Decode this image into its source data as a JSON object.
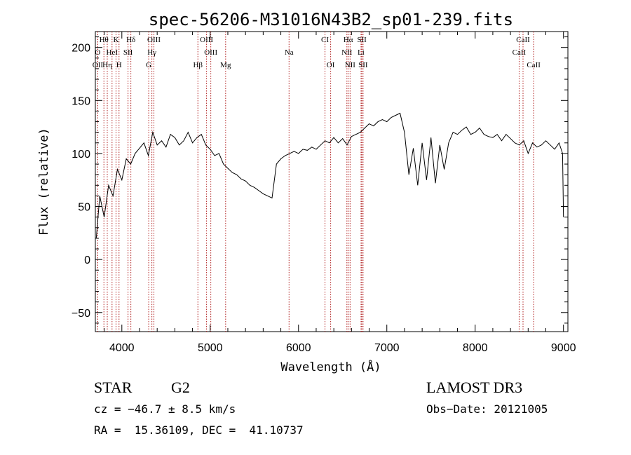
{
  "chart_data": {
    "type": "line",
    "title": "spec-56206-M31016N43B2_sp01-239.fits",
    "xlabel": "Wavelength (Å)",
    "ylabel": "Flux (relative)",
    "xlim": [
      3700,
      9050
    ],
    "ylim": [
      -68,
      215
    ],
    "x_ticks": [
      4000,
      5000,
      6000,
      7000,
      8000,
      9000
    ],
    "y_ticks": [
      -50,
      0,
      50,
      100,
      150,
      200
    ],
    "x_tick_labels": [
      "4000",
      "5000",
      "6000",
      "7000",
      "8000",
      "9000"
    ],
    "y_tick_labels": [
      "−50",
      "0",
      "50",
      "100",
      "150",
      "200"
    ],
    "line_color": "#000000",
    "marker_color": "#b22222",
    "spectral_lines": [
      {
        "label": "Hθ",
        "x": 3797,
        "row": 1
      },
      {
        "label": "K",
        "x": 3934,
        "row": 1
      },
      {
        "label": "Hδ",
        "x": 4102,
        "row": 1
      },
      {
        "label": "OIII",
        "x": 4363,
        "row": 1
      },
      {
        "label": "OIII",
        "x": 4959,
        "row": 1
      },
      {
        "label": "CI",
        "x": 6300,
        "row": 1
      },
      {
        "label": "Hα",
        "x": 6563,
        "row": 1
      },
      {
        "label": "SII",
        "x": 6717,
        "row": 1
      },
      {
        "label": "CaII",
        "x": 8542,
        "row": 1
      },
      {
        "label": "O",
        "x": 3727,
        "row": 2
      },
      {
        "label": "HeI",
        "x": 3889,
        "row": 2
      },
      {
        "label": "SII",
        "x": 4070,
        "row": 2
      },
      {
        "label": "Hγ",
        "x": 4340,
        "row": 2
      },
      {
        "label": "OIII",
        "x": 5007,
        "row": 2
      },
      {
        "label": "Na",
        "x": 5893,
        "row": 2
      },
      {
        "label": "NII",
        "x": 6548,
        "row": 2
      },
      {
        "label": "Li",
        "x": 6708,
        "row": 2
      },
      {
        "label": "CaII",
        "x": 8498,
        "row": 2
      },
      {
        "label": "OII",
        "x": 3727,
        "row": 3
      },
      {
        "label": "Hη",
        "x": 3835,
        "row": 3
      },
      {
        "label": "H",
        "x": 3968,
        "row": 3
      },
      {
        "label": "G",
        "x": 4304,
        "row": 3
      },
      {
        "label": "Hβ",
        "x": 4861,
        "row": 3
      },
      {
        "label": "Mg",
        "x": 5175,
        "row": 3
      },
      {
        "label": "OI",
        "x": 6364,
        "row": 3
      },
      {
        "label": "NII",
        "x": 6584,
        "row": 3
      },
      {
        "label": "SII",
        "x": 6731,
        "row": 3
      },
      {
        "label": "CaII",
        "x": 8662,
        "row": 3
      }
    ],
    "series": [
      {
        "name": "flux",
        "x": [
          3710,
          3750,
          3800,
          3850,
          3900,
          3950,
          4000,
          4050,
          4100,
          4150,
          4200,
          4250,
          4300,
          4350,
          4400,
          4450,
          4500,
          4550,
          4600,
          4650,
          4700,
          4750,
          4800,
          4850,
          4900,
          4950,
          5000,
          5050,
          5100,
          5150,
          5200,
          5250,
          5300,
          5350,
          5400,
          5450,
          5500,
          5550,
          5600,
          5650,
          5700,
          5750,
          5800,
          5850,
          5900,
          5950,
          6000,
          6050,
          6100,
          6150,
          6200,
          6250,
          6300,
          6350,
          6400,
          6450,
          6500,
          6550,
          6600,
          6650,
          6700,
          6750,
          6800,
          6850,
          6900,
          6950,
          7000,
          7050,
          7100,
          7150,
          7200,
          7250,
          7300,
          7350,
          7400,
          7450,
          7500,
          7550,
          7600,
          7650,
          7700,
          7750,
          7800,
          7850,
          7900,
          7950,
          8000,
          8050,
          8100,
          8150,
          8200,
          8250,
          8300,
          8350,
          8400,
          8450,
          8500,
          8550,
          8600,
          8650,
          8700,
          8750,
          8800,
          8850,
          8900,
          8950,
          8990,
          9000
        ],
        "y": [
          20,
          60,
          40,
          70,
          60,
          85,
          75,
          95,
          90,
          100,
          105,
          110,
          98,
          120,
          108,
          112,
          106,
          118,
          115,
          108,
          112,
          120,
          110,
          115,
          118,
          108,
          104,
          98,
          100,
          90,
          86,
          82,
          80,
          76,
          74,
          70,
          68,
          65,
          62,
          60,
          58,
          90,
          95,
          98,
          100,
          102,
          100,
          104,
          103,
          106,
          104,
          108,
          112,
          110,
          115,
          110,
          114,
          108,
          116,
          118,
          120,
          124,
          128,
          126,
          130,
          132,
          130,
          134,
          136,
          138,
          120,
          80,
          105,
          70,
          110,
          75,
          115,
          72,
          108,
          85,
          110,
          120,
          118,
          122,
          125,
          118,
          120,
          124,
          118,
          116,
          115,
          118,
          112,
          118,
          114,
          110,
          108,
          112,
          100,
          110,
          106,
          108,
          112,
          108,
          104,
          110,
          100,
          40
        ]
      }
    ]
  },
  "info": {
    "object_class": "STAR",
    "subclass": "G2",
    "survey": "LAMOST DR3",
    "redshift": "cz = −46.7 ± 8.5 km/s",
    "obs_date": "Obs−Date: 20121005",
    "coords": "RA =  15.36109, DEC =  41.10737"
  }
}
